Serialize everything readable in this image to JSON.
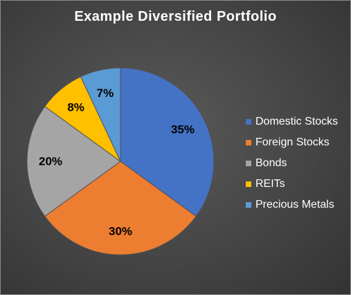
{
  "chart_data": {
    "type": "pie",
    "title": "Example Diversified Portfolio",
    "legend_position": "right",
    "slices": [
      {
        "label": "Domestic Stocks",
        "value": 35,
        "display": "35%",
        "color": "#4472c4"
      },
      {
        "label": "Foreign Stocks",
        "value": 30,
        "display": "30%",
        "color": "#ed7d31"
      },
      {
        "label": "Bonds",
        "value": 20,
        "display": "20%",
        "color": "#a5a5a5"
      },
      {
        "label": "REITs",
        "value": 8,
        "display": "8%",
        "color": "#ffc000"
      },
      {
        "label": "Precious Metals",
        "value": 7,
        "display": "7%",
        "color": "#5b9bd5"
      }
    ]
  }
}
